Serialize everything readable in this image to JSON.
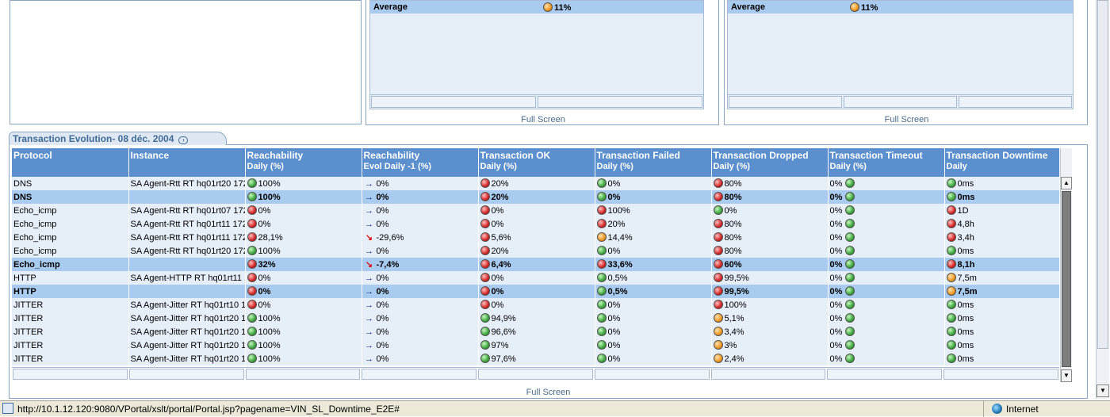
{
  "top_panels": [
    {
      "avg_label": "Average",
      "avg_value": "11%",
      "fullscreen": "Full Screen"
    },
    {
      "avg_label": "Average",
      "avg_value": "11%",
      "fullscreen": "Full Screen"
    }
  ],
  "section": {
    "tab_title": "Transaction Evolution- 08 déc. 2004",
    "fullscreen": "Full Screen"
  },
  "columns": [
    {
      "l1": "Protocol",
      "l2": ""
    },
    {
      "l1": "Instance",
      "l2": ""
    },
    {
      "l1": "Reachability",
      "l2": "Daily   (%)"
    },
    {
      "l1": "Reachability",
      "l2": "Evol Daily -1   (%)"
    },
    {
      "l1": "Transaction OK",
      "l2": "Daily   (%)"
    },
    {
      "l1": "Transaction Failed",
      "l2": "Daily   (%)"
    },
    {
      "l1": "Transaction Dropped",
      "l2": "Daily   (%)"
    },
    {
      "l1": "Transaction Timeout",
      "l2": "Daily   (%)"
    },
    {
      "l1": "Transaction Downtime",
      "l2": "Daily"
    }
  ],
  "rows": [
    {
      "sum": false,
      "c": [
        "DNS",
        "SA Agent-Rtt RT hq01rt20 172",
        "100%",
        "0%",
        "20%",
        "0%",
        "80%",
        "0%",
        "0ms"
      ],
      "st": [
        "g",
        "flat",
        "r",
        "g",
        "r",
        "g",
        "g"
      ]
    },
    {
      "sum": true,
      "c": [
        "DNS",
        "",
        "100%",
        "0%",
        "20%",
        "0%",
        "80%",
        "0%",
        "0ms"
      ],
      "st": [
        "g",
        "flat",
        "r",
        "g",
        "r",
        "g",
        "g"
      ]
    },
    {
      "sum": false,
      "c": [
        "Echo_icmp",
        "SA Agent-Rtt RT hq01rt07 172",
        "0%",
        "0%",
        "0%",
        "100%",
        "0%",
        "0%",
        "1D"
      ],
      "st": [
        "r",
        "flat",
        "r",
        "r",
        "g",
        "g",
        "r"
      ]
    },
    {
      "sum": false,
      "c": [
        "Echo_icmp",
        "SA Agent-Rtt RT hq01rt11 172",
        "0%",
        "0%",
        "0%",
        "20%",
        "80%",
        "0%",
        "4,8h"
      ],
      "st": [
        "r",
        "flat",
        "r",
        "r",
        "r",
        "g",
        "r"
      ]
    },
    {
      "sum": false,
      "c": [
        "Echo_icmp",
        "SA Agent-Rtt RT hq01rt11 172",
        "28,1%",
        "-29,6%",
        "5,6%",
        "14,4%",
        "80%",
        "0%",
        "3,4h"
      ],
      "st": [
        "r",
        "down",
        "r",
        "o",
        "r",
        "g",
        "r"
      ]
    },
    {
      "sum": false,
      "c": [
        "Echo_icmp",
        "SA Agent-Rtt RT hq01rt20 172",
        "100%",
        "0%",
        "20%",
        "0%",
        "80%",
        "0%",
        "0ms"
      ],
      "st": [
        "g",
        "flat",
        "r",
        "g",
        "r",
        "g",
        "g"
      ]
    },
    {
      "sum": true,
      "c": [
        "Echo_icmp",
        "",
        "32%",
        "-7,4%",
        "6,4%",
        "33,6%",
        "60%",
        "0%",
        "8,1h"
      ],
      "st": [
        "r",
        "down",
        "r",
        "r",
        "r",
        "g",
        "r"
      ]
    },
    {
      "sum": false,
      "c": [
        "HTTP",
        "SA Agent-HTTP RT hq01rt11 1",
        "0%",
        "0%",
        "0%",
        "0,5%",
        "99,5%",
        "0%",
        "7,5m"
      ],
      "st": [
        "r",
        "flat",
        "r",
        "g",
        "r",
        "g",
        "o"
      ]
    },
    {
      "sum": true,
      "c": [
        "HTTP",
        "",
        "0%",
        "0%",
        "0%",
        "0,5%",
        "99,5%",
        "0%",
        "7,5m"
      ],
      "st": [
        "r",
        "flat",
        "r",
        "g",
        "r",
        "g",
        "o"
      ]
    },
    {
      "sum": false,
      "c": [
        "JITTER",
        "SA Agent-Jitter RT hq01rt10 1",
        "0%",
        "0%",
        "0%",
        "0%",
        "100%",
        "0%",
        "0ms"
      ],
      "st": [
        "r",
        "flat",
        "r",
        "g",
        "r",
        "g",
        "g"
      ]
    },
    {
      "sum": false,
      "c": [
        "JITTER",
        "SA Agent-Jitter RT hq01rt20 1",
        "100%",
        "0%",
        "94,9%",
        "0%",
        "5,1%",
        "0%",
        "0ms"
      ],
      "st": [
        "g",
        "flat",
        "g",
        "g",
        "o",
        "g",
        "g"
      ]
    },
    {
      "sum": false,
      "c": [
        "JITTER",
        "SA Agent-Jitter RT hq01rt20 1",
        "100%",
        "0%",
        "96,6%",
        "0%",
        "3,4%",
        "0%",
        "0ms"
      ],
      "st": [
        "g",
        "flat",
        "g",
        "g",
        "o",
        "g",
        "g"
      ]
    },
    {
      "sum": false,
      "c": [
        "JITTER",
        "SA Agent-Jitter RT hq01rt20 1",
        "100%",
        "0%",
        "97%",
        "0%",
        "3%",
        "0%",
        "0ms"
      ],
      "st": [
        "g",
        "flat",
        "g",
        "g",
        "o",
        "g",
        "g"
      ]
    },
    {
      "sum": false,
      "c": [
        "JITTER",
        "SA Agent-Jitter RT hq01rt20 1",
        "100%",
        "0%",
        "97,6%",
        "0%",
        "2,4%",
        "0%",
        "0ms"
      ],
      "st": [
        "g",
        "flat",
        "g",
        "g",
        "o",
        "g",
        "g"
      ]
    }
  ],
  "status_bar": {
    "url": "http://10.1.12.120:9080/VPortal/xslt/portal/Portal.jsp?pagename=VIN_SL_Downtime_E2E#",
    "zone": "Internet"
  },
  "icons": {
    "status_green": "green-dot-icon",
    "status_red": "red-dot-icon",
    "status_orange": "orange-dot-icon",
    "trend_flat": "arrow-right-icon",
    "trend_down": "arrow-down-right-icon",
    "page": "page-icon",
    "globe": "globe-icon"
  },
  "colors": {
    "header_blue": "#5b8fcd",
    "row_light": "#e6eef8",
    "summary_row": "#a9cbef",
    "tab_text": "#3f6c98"
  }
}
